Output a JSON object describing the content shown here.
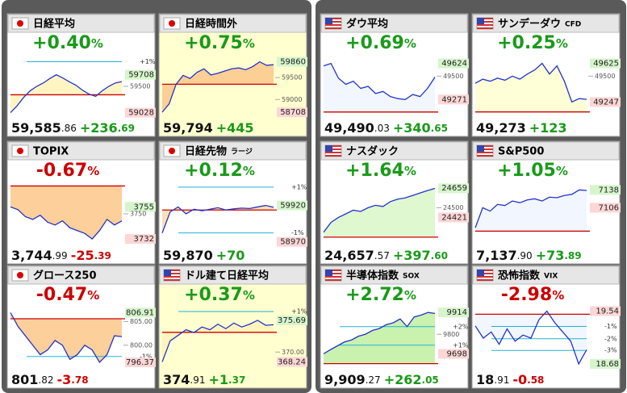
{
  "panels": [
    {
      "title": "日経平均",
      "flag": "jp",
      "bg": "#ffffff",
      "fill": "#fff3b8",
      "color": "#1a9a1a",
      "pct": "+0.40",
      "pct_unit": "%",
      "price_int": "59,585",
      "price_dec": ".86",
      "change_int": "+236",
      "change_dec": ".69",
      "ylim": [
        58950,
        60050
      ],
      "levels": [
        {
          "value": 59942,
          "label": "+1%",
          "style": "pct"
        },
        {
          "value": 59708,
          "style": "green"
        },
        {
          "value": 59500,
          "style": "plain"
        },
        {
          "value": 59028,
          "style": "pink"
        },
        {
          "value": 59349,
          "style": "base"
        }
      ],
      "values": [
        59028,
        59150,
        59300,
        59420,
        59500,
        59560,
        59640,
        59708,
        59650,
        59580,
        59520,
        59430,
        59360,
        59320,
        59420,
        59500,
        59560,
        59585
      ]
    },
    {
      "title": "日経時間外",
      "flag": "jp",
      "bg": "#ffffd0",
      "fill": "#fbc78a",
      "color": "#1a9a1a",
      "pct": "+0.75",
      "pct_unit": "%",
      "price_int": "59,794",
      "change_int": "+445",
      "ylim": [
        58600,
        60000
      ],
      "levels": [
        {
          "value": 59860,
          "style": "green"
        },
        {
          "value": 59500,
          "style": "plain"
        },
        {
          "value": 59000,
          "style": "plain"
        },
        {
          "value": 58708,
          "style": "pink"
        },
        {
          "value": 59349,
          "style": "base"
        }
      ],
      "values": [
        58708,
        58900,
        59350,
        59550,
        59480,
        59620,
        59700,
        59560,
        59600,
        59650,
        59700,
        59720,
        59680,
        59750,
        59860,
        59780,
        59794
      ]
    },
    {
      "title": "ダウ平均",
      "flag": "us",
      "bg": "#ffffff",
      "fill": "#eef4ff",
      "color": "#1a9a1a",
      "pct": "+0.69",
      "pct_unit": "%",
      "price_int": "49,490",
      "price_dec": ".03",
      "change_int": "+340",
      "change_dec": ".65",
      "ylim": [
        49100,
        49700
      ],
      "levels": [
        {
          "value": 49624,
          "style": "green"
        },
        {
          "value": 49500,
          "style": "plain"
        },
        {
          "value": 49271,
          "style": "pink"
        },
        {
          "value": 49149,
          "style": "base"
        }
      ],
      "values": [
        49600,
        49624,
        49480,
        49420,
        49450,
        49380,
        49400,
        49330,
        49350,
        49300,
        49280,
        49271,
        49320,
        49300,
        49380,
        49490
      ]
    },
    {
      "title": "サンデーダウ",
      "sub": "CFD",
      "flag": "us",
      "bg": "#ffffff",
      "fill": "#ffffd0",
      "color": "#1a9a1a",
      "pct": "+0.25",
      "pct_unit": "%",
      "price_int": "49,273",
      "change_int": "+123",
      "ylim": [
        49100,
        49700
      ],
      "levels": [
        {
          "value": 49625,
          "style": "green"
        },
        {
          "value": 49500,
          "style": "plain"
        },
        {
          "value": 49247,
          "style": "pink"
        },
        {
          "value": 49150,
          "style": "base"
        }
      ],
      "values": [
        49430,
        49470,
        49450,
        49480,
        49460,
        49500,
        49470,
        49520,
        49560,
        49625,
        49520,
        49600,
        49450,
        49247,
        49280,
        49273
      ]
    },
    {
      "title": "TOPIX",
      "flag": "jp",
      "bg": "#ffffff",
      "fill": "#fbc78a",
      "color": "#cc0000",
      "pct": "-0.67",
      "pct_unit": "%",
      "price_int": "3,744",
      "price_dec": ".99",
      "change_int": "-25",
      "change_dec": ".39",
      "ylim": [
        3728,
        3772
      ],
      "levels": [
        {
          "value": 3755,
          "style": "green"
        },
        {
          "value": 3750,
          "style": "plain"
        },
        {
          "value": 3732,
          "style": "pink"
        },
        {
          "value": 3770,
          "style": "base"
        }
      ],
      "values": [
        3755,
        3753,
        3748,
        3746,
        3749,
        3744,
        3742,
        3745,
        3740,
        3738,
        3736,
        3732,
        3738,
        3746,
        3742,
        3745
      ]
    },
    {
      "title": "日経先物",
      "sub": "ラージ",
      "flag": "jp",
      "bg": "#ffffff",
      "fill": "#fbd9a8",
      "color": "#1a9a1a",
      "pct": "+0.12",
      "pct_unit": "%",
      "price_int": "59,870",
      "change_int": "+70",
      "ylim": [
        58900,
        60500
      ],
      "levels": [
        {
          "value": 60398,
          "label": "+1%",
          "style": "pct"
        },
        {
          "value": 59920,
          "style": "green"
        },
        {
          "value": 59202,
          "label": "-1%",
          "style": "pct"
        },
        {
          "value": 58970,
          "style": "pink"
        },
        {
          "value": 59800,
          "style": "base"
        }
      ],
      "values": [
        59200,
        59750,
        59880,
        59700,
        59820,
        59780,
        59820,
        59860,
        59800,
        59830,
        59850,
        59840,
        59880,
        59920,
        59870
      ]
    },
    {
      "title": "ナスダック",
      "flag": "us",
      "bg": "#ffffff",
      "fill": "#d9f7c8",
      "color": "#1a9a1a",
      "pct": "+1.64",
      "pct_unit": "%",
      "price_int": "24,657",
      "price_dec": ".57",
      "change_int": "+397",
      "change_dec": ".60",
      "ylim": [
        24200,
        24700
      ],
      "levels": [
        {
          "value": 24659,
          "style": "green"
        },
        {
          "value": 24500,
          "style": "plain"
        },
        {
          "value": 24421,
          "style": "pink"
        },
        {
          "value": 24260,
          "style": "base"
        }
      ],
      "values": [
        24300,
        24380,
        24421,
        24450,
        24480,
        24470,
        24500,
        24520,
        24510,
        24550,
        24570,
        24580,
        24600,
        24620,
        24640,
        24657
      ]
    },
    {
      "title": "S&P500",
      "flag": "us",
      "bg": "#ffffff",
      "fill": "#eef4ff",
      "color": "#1a9a1a",
      "pct": "+1.05",
      "pct_unit": "%",
      "price_int": "7,137",
      "price_dec": ".90",
      "change_int": "+73",
      "change_dec": ".89",
      "ylim": [
        7040,
        7150
      ],
      "levels": [
        {
          "value": 7138,
          "style": "green"
        },
        {
          "value": 7106,
          "style": "pink"
        },
        {
          "value": 7064,
          "style": "base"
        }
      ],
      "values": [
        7070,
        7106,
        7100,
        7112,
        7110,
        7118,
        7115,
        7120,
        7122,
        7118,
        7125,
        7124,
        7128,
        7130,
        7138,
        7137
      ]
    },
    {
      "title": "グロース250",
      "flag": "jp",
      "bg": "#ffffff",
      "fill": "#fbc78a",
      "color": "#cc0000",
      "pct": "-0.47",
      "pct_unit": "%",
      "price_int": "801",
      "price_dec": ".82",
      "change_int": "-3",
      "change_dec": ".78",
      "ylim": [
        795,
        808
      ],
      "levels": [
        {
          "value": 806.91,
          "style": "green"
        },
        {
          "value": 805,
          "label": "805.00",
          "style": "plain"
        },
        {
          "value": 800,
          "label": "800.00",
          "style": "plain"
        },
        {
          "value": 797.6,
          "label": "-1%",
          "style": "pct"
        },
        {
          "value": 796.37,
          "style": "pink"
        },
        {
          "value": 805.6,
          "style": "base"
        }
      ],
      "values": [
        806.91,
        804,
        802,
        800,
        798,
        799,
        801,
        800,
        797,
        798,
        800,
        799,
        796.37,
        798,
        802,
        801.82
      ]
    },
    {
      "title": "ドル建て日経平均",
      "flag": "us",
      "bg": "#ffffd0",
      "fill": "#fff3b8",
      "color": "#1a9a1a",
      "pct": "+0.37",
      "pct_unit": "%",
      "price_int": "374",
      "price_dec": ".91",
      "change_int": "+1",
      "change_dec": ".37",
      "ylim": [
        367,
        378
      ],
      "levels": [
        {
          "value": 377.27,
          "label": "+1%",
          "style": "pct"
        },
        {
          "value": 375.69,
          "style": "green"
        },
        {
          "value": 370,
          "label": "370.00",
          "style": "plain"
        },
        {
          "value": 368.24,
          "style": "pink"
        },
        {
          "value": 373.54,
          "style": "base"
        }
      ],
      "values": [
        368.24,
        372,
        373,
        374,
        373.5,
        374.5,
        374,
        375,
        374.2,
        375.2,
        374.5,
        375,
        375.69,
        374.8,
        374.91
      ]
    },
    {
      "title": "半導体指数",
      "sub": "SOX",
      "flag": "us",
      "bg": "#ffffff",
      "fill": "#bff0a0",
      "color": "#1a9a1a",
      "pct": "+2.72",
      "pct_unit": "%",
      "price_int": "9,909",
      "price_dec": ".27",
      "change_int": "+262",
      "change_dec": ".05",
      "ylim": [
        9620,
        9940
      ],
      "levels": [
        {
          "value": 9914,
          "style": "green"
        },
        {
          "value": 9840,
          "label": "+2%",
          "style": "pct"
        },
        {
          "value": 9800,
          "style": "plain"
        },
        {
          "value": 9743,
          "label": "+1%",
          "style": "pct"
        },
        {
          "value": 9698,
          "style": "pink"
        },
        {
          "value": 9647,
          "style": "base"
        }
      ],
      "values": [
        9698,
        9720,
        9740,
        9760,
        9770,
        9790,
        9800,
        9820,
        9830,
        9850,
        9860,
        9880,
        9840,
        9890,
        9900,
        9914,
        9909
      ]
    },
    {
      "title": "恐怖指数",
      "sub": "VIX",
      "flag": "us",
      "bg": "#ffffff",
      "fill": "#eef4ff",
      "color": "#cc0000",
      "pct": "-2.98",
      "pct_unit": "%",
      "price_int": "18",
      "price_dec": ".91",
      "change_int": "-0",
      "change_dec": ".58",
      "ylim": [
        18.6,
        19.6
      ],
      "levels": [
        {
          "value": 19.54,
          "style": "pink"
        },
        {
          "value": 19.29,
          "label": "-1%",
          "style": "pct"
        },
        {
          "value": 19.09,
          "label": "-2%",
          "style": "pct"
        },
        {
          "value": 18.9,
          "label": "-3%",
          "style": "pct"
        },
        {
          "value": 18.68,
          "style": "green"
        },
        {
          "value": 19.49,
          "style": "base"
        }
      ],
      "values": [
        19.3,
        19.1,
        19.2,
        19.0,
        19.25,
        19.05,
        19.15,
        19.1,
        19.4,
        19.54,
        19.35,
        19.2,
        19.05,
        18.68,
        18.91
      ]
    }
  ]
}
